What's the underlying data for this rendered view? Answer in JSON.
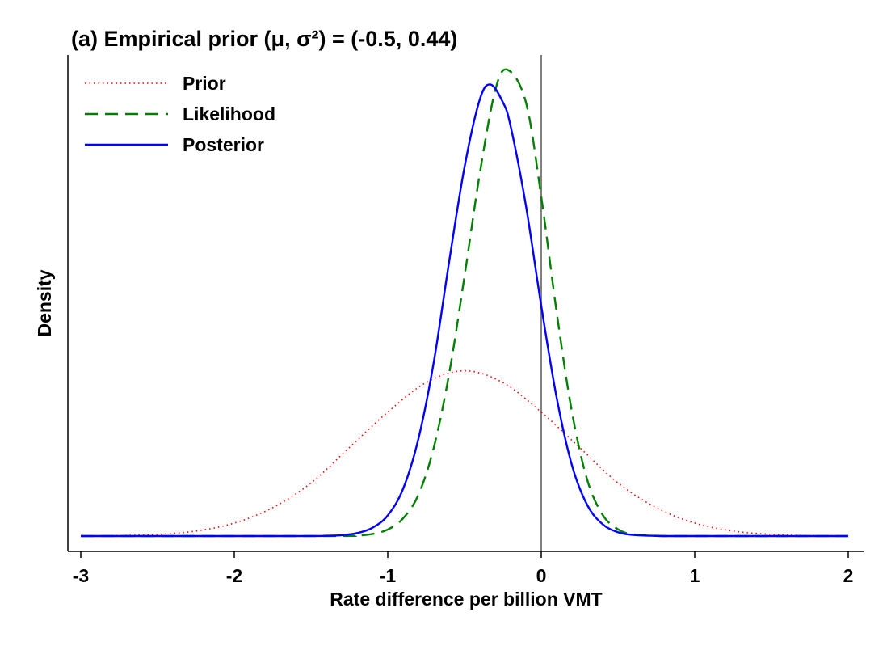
{
  "chart_data": {
    "type": "line",
    "title": "(a) Empirical prior (μ, σ²) = (-0.5, 0.44)",
    "xlabel": "Rate difference per billion VMT",
    "ylabel": "Density",
    "xlim": [
      -3,
      2
    ],
    "x_ticks": [
      -3,
      -2,
      -1,
      0,
      1,
      2
    ],
    "x_tick_labels": [
      "-3",
      "-2",
      "-1",
      "0",
      "1",
      "2"
    ],
    "y_ticks_shown": false,
    "reference_line_x": 0,
    "legend_position": "top-left",
    "series": [
      {
        "name": "Prior",
        "color": "#ff0000",
        "style": "dotted",
        "x": [
          -3.0,
          -2.75,
          -2.5,
          -2.25,
          -2.0,
          -1.75,
          -1.5,
          -1.25,
          -1.0,
          -0.75,
          -0.5,
          -0.25,
          0.0,
          0.25,
          0.5,
          0.75,
          1.0,
          1.25,
          1.5,
          1.75,
          2.0
        ],
        "y": [
          0.0004,
          0.0017,
          0.0058,
          0.017,
          0.044,
          0.096,
          0.18,
          0.3,
          0.42,
          0.52,
          0.56,
          0.52,
          0.42,
          0.3,
          0.18,
          0.096,
          0.044,
          0.017,
          0.0058,
          0.0017,
          0.0004
        ]
      },
      {
        "name": "Likelihood",
        "color": "#008000",
        "style": "dashed",
        "x": [
          -3.0,
          -1.4,
          -1.2,
          -1.1,
          -1.0,
          -0.9,
          -0.8,
          -0.7,
          -0.6,
          -0.5,
          -0.4,
          -0.3,
          -0.22,
          -0.1,
          0.0,
          0.1,
          0.2,
          0.3,
          0.4,
          0.5,
          0.6,
          0.8,
          1.0,
          2.0
        ],
        "y": [
          0.0,
          0.0,
          0.002,
          0.007,
          0.022,
          0.06,
          0.14,
          0.3,
          0.55,
          0.88,
          1.23,
          1.51,
          1.58,
          1.47,
          1.15,
          0.76,
          0.42,
          0.19,
          0.072,
          0.023,
          0.006,
          0.0,
          0.0,
          0.0
        ]
      },
      {
        "name": "Posterior",
        "color": "#0000ff",
        "style": "solid",
        "x": [
          -3.0,
          -1.6,
          -1.4,
          -1.3,
          -1.2,
          -1.1,
          -1.0,
          -0.9,
          -0.8,
          -0.7,
          -0.6,
          -0.5,
          -0.4,
          -0.33,
          -0.25,
          -0.2,
          -0.1,
          0.0,
          0.1,
          0.2,
          0.3,
          0.4,
          0.5,
          0.6,
          0.8,
          1.0,
          2.0
        ],
        "y": [
          0.0,
          0.0,
          0.001,
          0.003,
          0.01,
          0.028,
          0.07,
          0.16,
          0.33,
          0.59,
          0.93,
          1.25,
          1.48,
          1.53,
          1.47,
          1.39,
          1.12,
          0.78,
          0.47,
          0.24,
          0.105,
          0.04,
          0.013,
          0.004,
          0.0,
          0.0,
          0.0
        ]
      }
    ]
  }
}
